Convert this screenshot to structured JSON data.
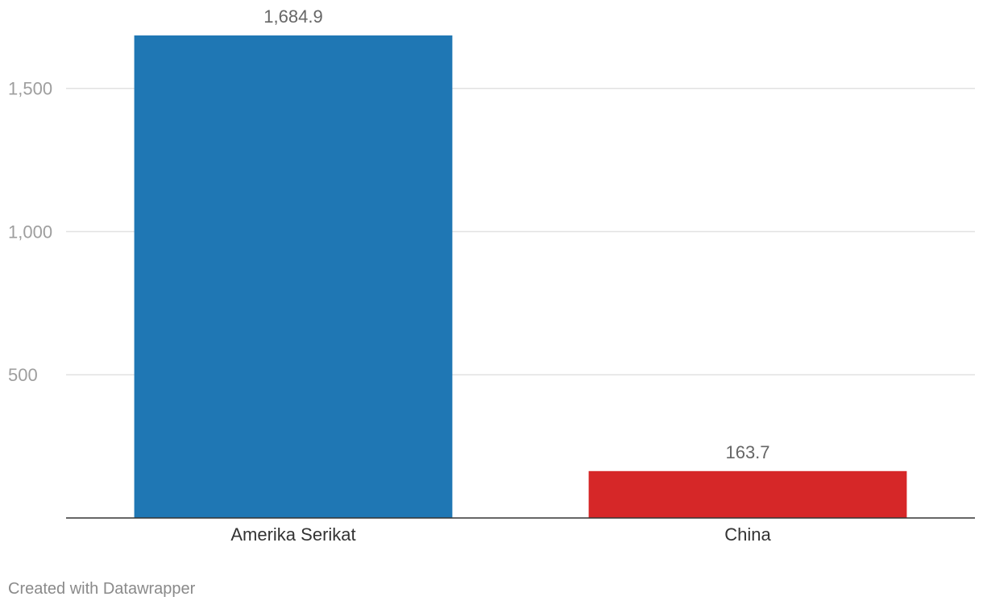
{
  "chart_data": {
    "type": "bar",
    "categories": [
      "Amerika Serikat",
      "China"
    ],
    "values": [
      1684.9,
      163.7
    ],
    "value_labels": [
      "1,684.9",
      "163.7"
    ],
    "colors": [
      "#1f77b4",
      "#d62728"
    ],
    "ylim": [
      0,
      1684.9
    ],
    "yticks": [
      500,
      1000,
      1500
    ],
    "ytick_labels": [
      "500",
      "1,000",
      "1,500"
    ],
    "grid": true,
    "legend": "none",
    "title": "",
    "xlabel": "",
    "ylabel": ""
  },
  "footer": {
    "credit": "Created with Datawrapper"
  }
}
